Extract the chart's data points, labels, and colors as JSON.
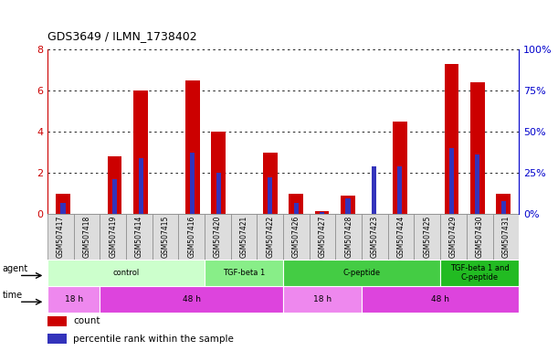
{
  "title": "GDS3649 / ILMN_1738402",
  "samples": [
    "GSM507417",
    "GSM507418",
    "GSM507419",
    "GSM507414",
    "GSM507415",
    "GSM507416",
    "GSM507420",
    "GSM507421",
    "GSM507422",
    "GSM507426",
    "GSM507427",
    "GSM507428",
    "GSM507423",
    "GSM507424",
    "GSM507425",
    "GSM507429",
    "GSM507430",
    "GSM507431"
  ],
  "count_values": [
    1.0,
    0.0,
    2.8,
    6.0,
    0.0,
    6.5,
    4.0,
    0.0,
    3.0,
    1.0,
    0.15,
    0.9,
    0.0,
    4.5,
    0.0,
    7.3,
    6.4,
    1.0
  ],
  "percentile_values": [
    6.875,
    0.0,
    21.25,
    33.75,
    0.0,
    37.5,
    25.0,
    0.0,
    22.5,
    6.875,
    1.5,
    9.375,
    28.75,
    28.75,
    0.0,
    40.0,
    36.25,
    8.125
  ],
  "left_ylim": [
    0,
    8
  ],
  "left_yticks": [
    0,
    2,
    4,
    6,
    8
  ],
  "right_ylim": [
    0,
    100
  ],
  "right_yticks": [
    0,
    25,
    50,
    75,
    100
  ],
  "bar_color_red": "#cc0000",
  "bar_color_blue": "#3333bb",
  "agent_groups": [
    {
      "label": "control",
      "start": 0,
      "end": 5,
      "color": "#ccffcc"
    },
    {
      "label": "TGF-beta 1",
      "start": 6,
      "end": 8,
      "color": "#88ee88"
    },
    {
      "label": "C-peptide",
      "start": 9,
      "end": 14,
      "color": "#44cc44"
    },
    {
      "label": "TGF-beta 1 and\nC-peptide",
      "start": 15,
      "end": 17,
      "color": "#22bb22"
    }
  ],
  "time_groups": [
    {
      "label": "18 h",
      "start": 0,
      "end": 1,
      "color": "#ee88ee"
    },
    {
      "label": "48 h",
      "start": 2,
      "end": 8,
      "color": "#dd44dd"
    },
    {
      "label": "18 h",
      "start": 9,
      "end": 11,
      "color": "#ee88ee"
    },
    {
      "label": "48 h",
      "start": 12,
      "end": 17,
      "color": "#dd44dd"
    }
  ],
  "legend_red_label": "count",
  "legend_blue_label": "percentile rank within the sample",
  "bg_color": "#ffffff",
  "tick_label_color_left": "#cc0000",
  "tick_label_color_right": "#0000cc",
  "sample_box_color": "#dddddd",
  "sample_box_border": "#888888"
}
